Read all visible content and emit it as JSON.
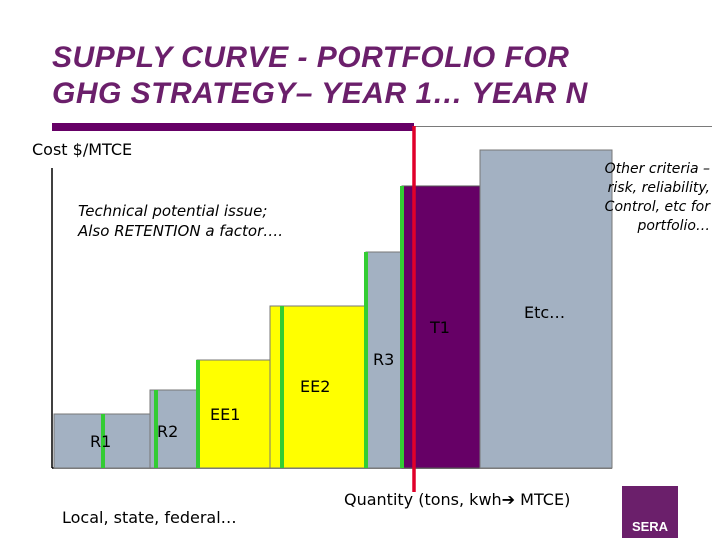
{
  "title": {
    "line1": "SUPPLY CURVE - PORTFOLIO FOR",
    "line2": "GHG STRATEGY– YEAR 1… YEAR N"
  },
  "y_axis_label": "Cost $/MTCE",
  "x_axis_label": "Quantity (tons, kwh➔ MTCE)",
  "notes": {
    "technical_line1": "Technical potential issue;",
    "technical_line2": "Also RETENTION a factor….",
    "other_line1": "Other criteria –",
    "other_line2": "risk, reliability,",
    "other_line3": "Control, etc for",
    "other_line4": "portfolio…"
  },
  "footer_note": "Local, state, federal…",
  "logo_text": "SERA",
  "colors": {
    "title": "#6b1f6b",
    "gray_block": "#a3b1c2",
    "yellow_block": "#ffff00",
    "purple_block": "#660066",
    "green_marker": "#33cc33",
    "red_marker": "#e0002a"
  },
  "blocks": [
    {
      "label": "R1",
      "color": "gray"
    },
    {
      "label": "R2",
      "color": "gray"
    },
    {
      "label": "EE1",
      "color": "yellow"
    },
    {
      "label": "EE2",
      "color": "yellow"
    },
    {
      "label": "R3",
      "color": "gray"
    },
    {
      "label": "T1",
      "color": "purple"
    },
    {
      "label": "Etc…",
      "color": "gray"
    }
  ]
}
